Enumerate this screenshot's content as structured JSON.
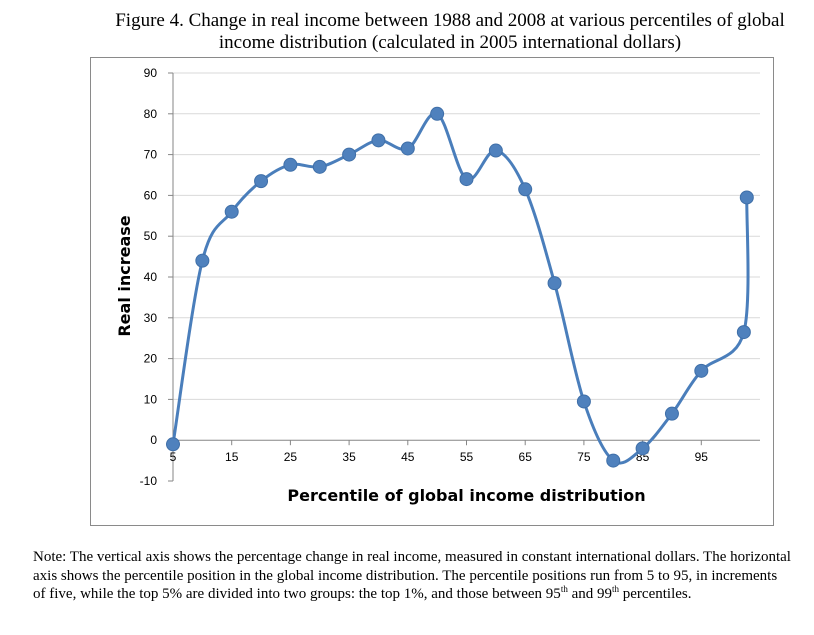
{
  "figure": {
    "title_line1": "Figure 4. Change in real income between 1988 and 2008 at various percentiles of global",
    "title_line2": "income distribution (calculated in 2005 international dollars)"
  },
  "note": {
    "text_a": "Note: The vertical axis shows the percentage change in real income, measured in constant international dollars. The horizontal axis shows the percentile position in the global income distribution. The percentile positions run from 5 to 95, in increments of five, while the top 5% are divided into two groups: the top 1%, and those between 95",
    "sup1": "th",
    "text_b": " and 99",
    "sup2": "th",
    "text_c": " percentiles."
  },
  "chart_data": {
    "type": "line",
    "title": "",
    "xlabel": "Percentile of global income distribution",
    "ylabel": "Real increase",
    "ylim": [
      -10,
      90
    ],
    "yticks": [
      -10,
      0,
      10,
      20,
      30,
      40,
      50,
      60,
      70,
      80,
      90
    ],
    "xtick_labels": [
      "5",
      "15",
      "25",
      "35",
      "45",
      "55",
      "65",
      "75",
      "85",
      "95"
    ],
    "grid": "horizontal",
    "smooth": true,
    "colors": {
      "line": "#4a7ebb",
      "marker": "#4f81bd",
      "grid": "#d9d9d9",
      "axis": "#868686"
    },
    "series": [
      {
        "x": [
          5,
          10,
          15,
          20,
          25,
          30,
          35,
          40,
          45,
          50,
          55,
          60,
          65,
          70,
          75,
          80,
          85,
          90,
          95,
          99,
          100
        ],
        "values": [
          -1,
          44,
          56,
          63.5,
          67.5,
          67,
          70,
          73.5,
          71.5,
          80,
          64,
          71,
          61.5,
          38.5,
          9.5,
          -5,
          -2,
          6.5,
          17,
          26.5,
          59.5
        ]
      }
    ]
  }
}
